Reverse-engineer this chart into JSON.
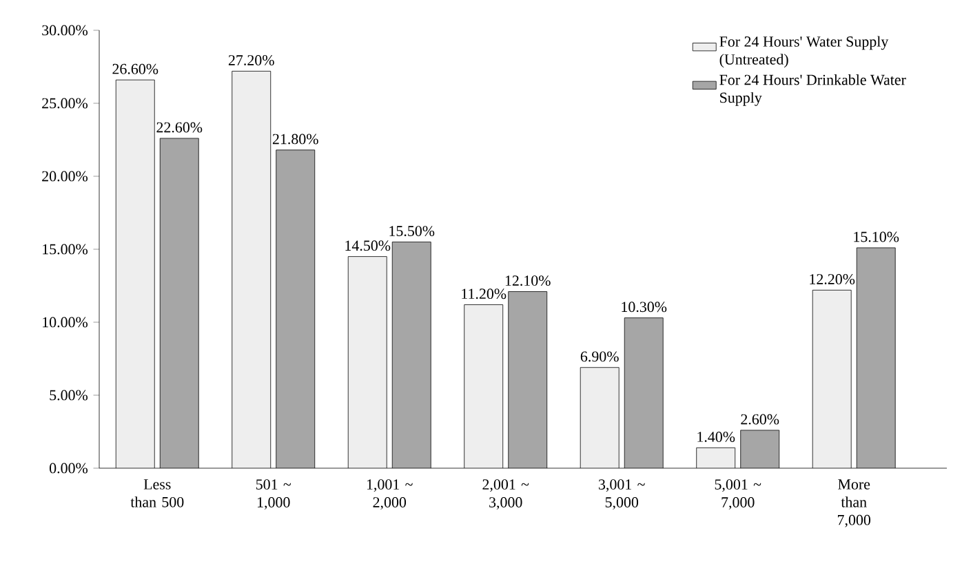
{
  "chart_data": {
    "type": "bar",
    "categories": [
      "Less than 500",
      "501 ~ 1,000",
      "1,001 ~ 2,000",
      "2,001 ~ 3,000",
      "3,001 ~ 5,000",
      "5,001 ~ 7,000",
      "More than 7,000"
    ],
    "series": [
      {
        "name": "For 24 Hours' Water Supply (Untreated)",
        "color": "#eeeeee",
        "values": [
          26.6,
          27.2,
          14.5,
          11.2,
          6.9,
          1.4,
          12.2
        ],
        "value_labels": [
          "26.60%",
          "27.20%",
          "14.50%",
          "11.20%",
          "6.90%",
          "1.40%",
          "12.20%"
        ]
      },
      {
        "name": "For 24 Hours' Drinkable Water Supply",
        "color": "#a6a6a6",
        "values": [
          22.6,
          21.8,
          15.5,
          12.1,
          10.3,
          2.6,
          15.1
        ],
        "value_labels": [
          "22.60%",
          "21.80%",
          "15.50%",
          "12.10%",
          "10.30%",
          "2.60%",
          "15.10%"
        ]
      }
    ],
    "ylim": [
      0,
      30
    ],
    "yticks": [
      {
        "value": 0,
        "label": "0.00%"
      },
      {
        "value": 5,
        "label": "5.00%"
      },
      {
        "value": 10,
        "label": "10.00%"
      },
      {
        "value": 15,
        "label": "15.00%"
      },
      {
        "value": 20,
        "label": "20.00%"
      },
      {
        "value": 25,
        "label": "25.00%"
      },
      {
        "value": 30,
        "label": "30.00%"
      }
    ],
    "grid": false,
    "legend": "top right"
  }
}
